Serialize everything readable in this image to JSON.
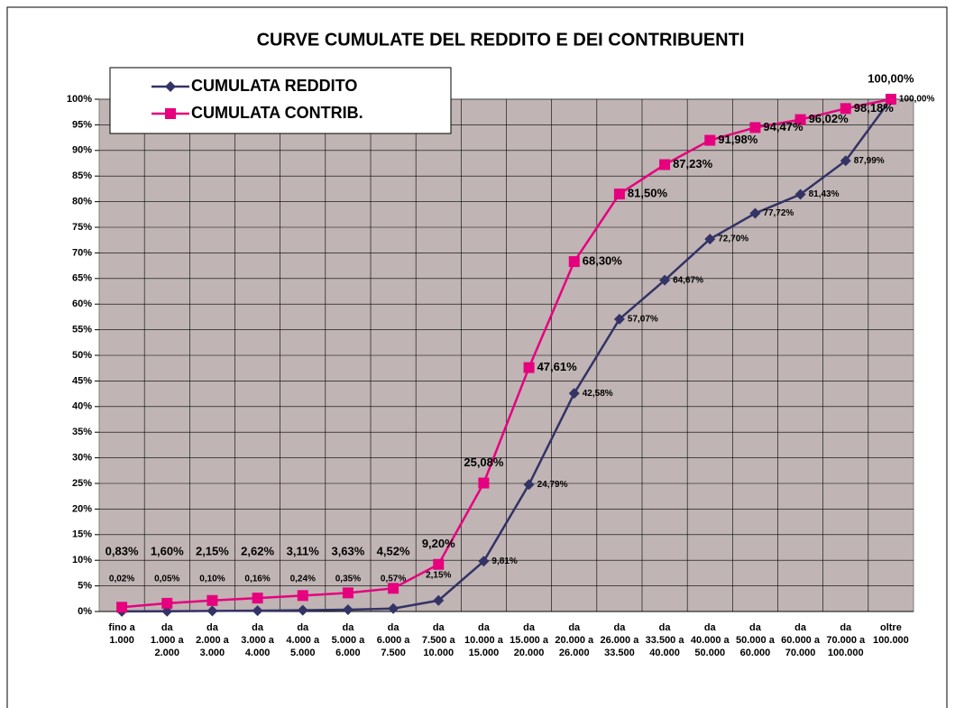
{
  "chart_data": {
    "type": "line",
    "title": "CURVE CUMULATE DEL REDDITO E DEI CONTRIBUENTI",
    "categories": [
      "fino a\n1.000",
      "da\n1.000 a\n2.000",
      "da\n2.000 a\n3.000",
      "da\n3.000 a\n4.000",
      "da\n4.000 a\n5.000",
      "da\n5.000 a\n6.000",
      "da\n6.000 a\n7.500",
      "da\n7.500 a\n10.000",
      "da\n10.000 a\n15.000",
      "da\n15.000 a\n20.000",
      "da\n20.000 a\n26.000",
      "da\n26.000 a\n33.500",
      "da\n33.500 a\n40.000",
      "da\n40.000 a\n50.000",
      "da\n50.000 a\n60.000",
      "da\n60.000 a\n70.000",
      "da\n70.000 a\n100.000",
      "oltre\n100.000"
    ],
    "series": [
      {
        "name": "CUMULATA REDDITO",
        "color": "#333366",
        "marker": "diamond",
        "values": [
          0.02,
          0.05,
          0.1,
          0.16,
          0.24,
          0.35,
          0.57,
          2.15,
          9.81,
          24.79,
          42.58,
          57.07,
          64.67,
          72.7,
          77.72,
          81.43,
          87.99,
          100.0
        ],
        "value_labels": [
          "0,02%",
          "0,05%",
          "0,10%",
          "0,16%",
          "0,24%",
          "0,35%",
          "0,57%",
          "2,15%",
          "9,81%",
          "24,79%",
          "42,58%",
          "57,07%",
          "64,67%",
          "72,70%",
          "77,72%",
          "81,43%",
          "87,99%",
          "100,00%"
        ]
      },
      {
        "name": "CUMULATA CONTRIB.",
        "color": "#e6007e",
        "marker": "square",
        "values": [
          0.83,
          1.6,
          2.15,
          2.62,
          3.11,
          3.63,
          4.52,
          9.2,
          25.08,
          47.61,
          68.3,
          81.5,
          87.23,
          91.98,
          94.47,
          96.02,
          98.18,
          100.0
        ],
        "value_labels": [
          "0,83%",
          "1,60%",
          "2,15%",
          "2,62%",
          "3,11%",
          "3,63%",
          "4,52%",
          "9,20%",
          "25,08%",
          "47,61%",
          "68,30%",
          "81,50%",
          "87,23%",
          "91,98%",
          "94,47%",
          "96,02%",
          "98,18%",
          "100,00%"
        ]
      }
    ],
    "ylim": [
      0,
      100
    ],
    "yticks": [
      {
        "value": 0,
        "label": "0%"
      },
      {
        "value": 5,
        "label": "5%"
      },
      {
        "value": 10,
        "label": "10%"
      },
      {
        "value": 15,
        "label": "15%"
      },
      {
        "value": 20,
        "label": "20%"
      },
      {
        "value": 25,
        "label": "25%"
      },
      {
        "value": 30,
        "label": "30%"
      },
      {
        "value": 35,
        "label": "35%"
      },
      {
        "value": 40,
        "label": "40%"
      },
      {
        "value": 45,
        "label": "45%"
      },
      {
        "value": 50,
        "label": "50%"
      },
      {
        "value": 55,
        "label": "55%"
      },
      {
        "value": 60,
        "label": "60%"
      },
      {
        "value": 65,
        "label": "65%"
      },
      {
        "value": 70,
        "label": "70%"
      },
      {
        "value": 75,
        "label": "75%"
      },
      {
        "value": 80,
        "label": "80%"
      },
      {
        "value": 85,
        "label": "85%"
      },
      {
        "value": 90,
        "label": "90%"
      },
      {
        "value": 95,
        "label": "95%"
      },
      {
        "value": 100,
        "label": "100%"
      }
    ],
    "grid": true,
    "legend": "top-left"
  }
}
